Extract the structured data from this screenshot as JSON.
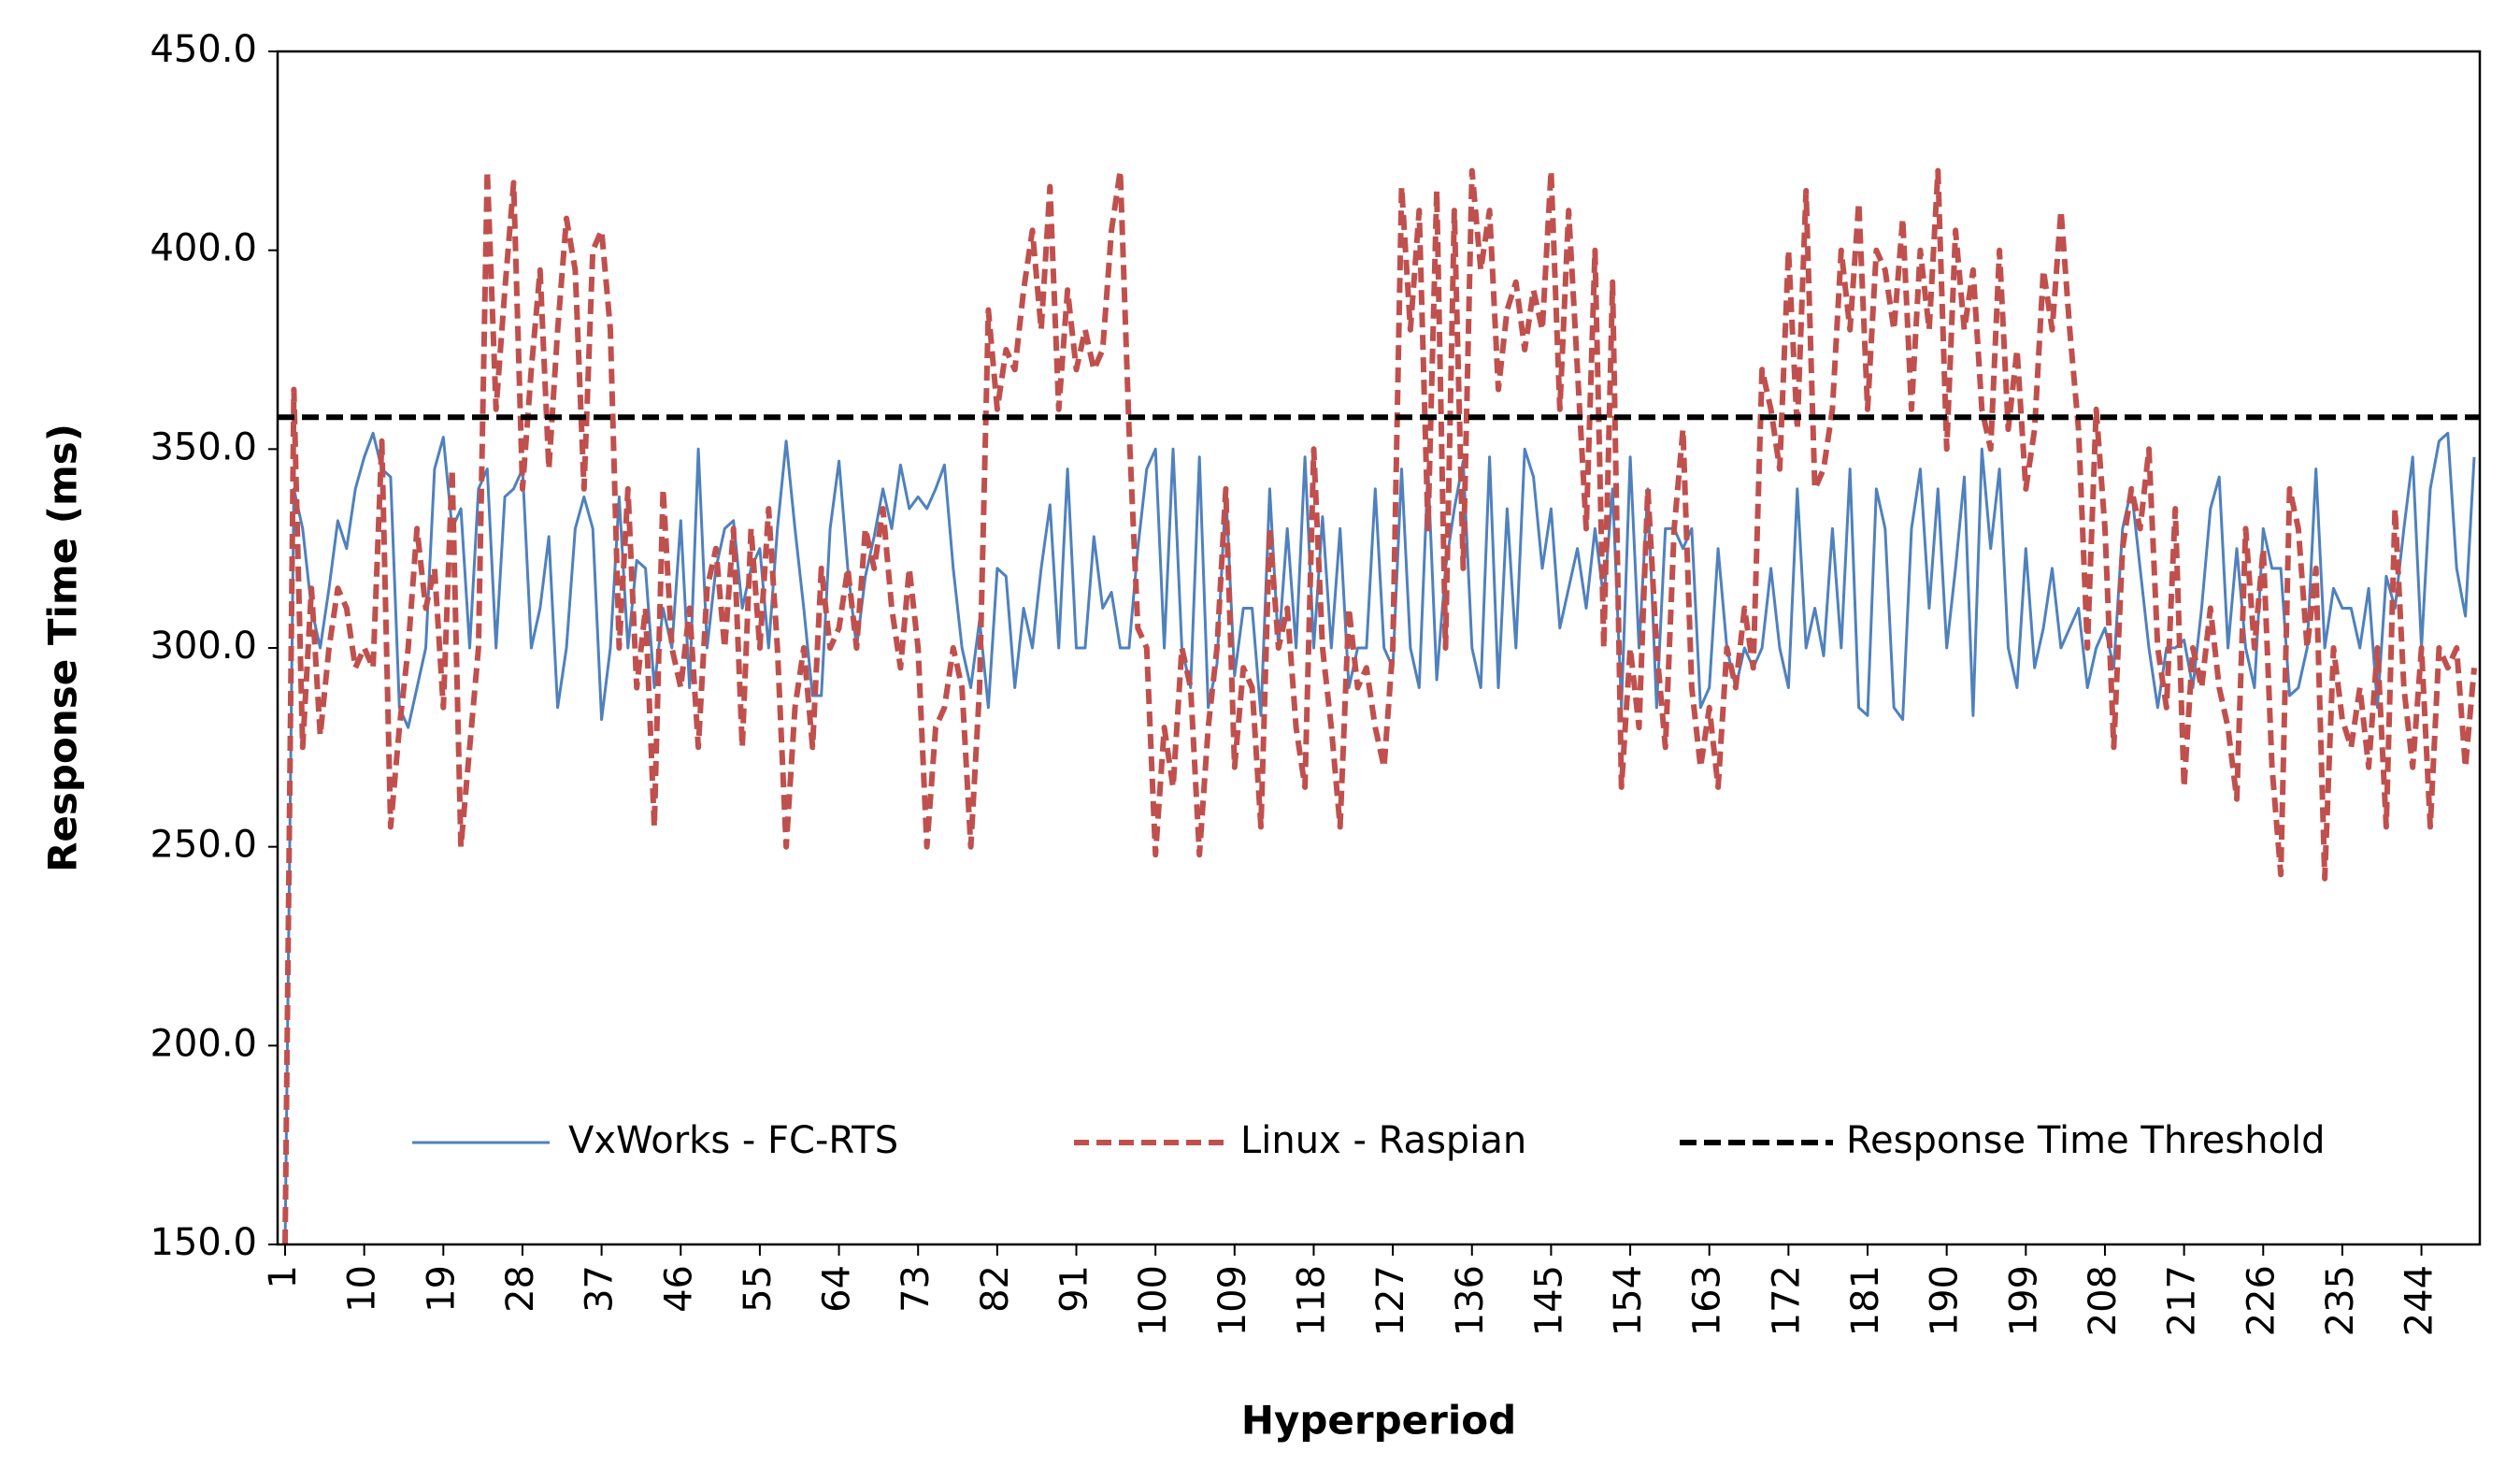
{
  "chart_data": {
    "type": "line",
    "xlabel": "Hyperperiod",
    "ylabel": "Response Time (ms)",
    "x": [
      1,
      2,
      3,
      4,
      5,
      6,
      7,
      8,
      9,
      10,
      11,
      12,
      13,
      14,
      15,
      16,
      17,
      18,
      19,
      20,
      21,
      22,
      23,
      24,
      25,
      26,
      27,
      28,
      29,
      30,
      31,
      32,
      33,
      34,
      35,
      36,
      37,
      38,
      39,
      40,
      41,
      42,
      43,
      44,
      45,
      46,
      47,
      48,
      49,
      50,
      51,
      52,
      53,
      54,
      55,
      56,
      57,
      58,
      59,
      60,
      61,
      62,
      63,
      64,
      65,
      66,
      67,
      68,
      69,
      70,
      71,
      72,
      73,
      74,
      75,
      76,
      77,
      78,
      79,
      80,
      81,
      82,
      83,
      84,
      85,
      86,
      87,
      88,
      89,
      90,
      91,
      92,
      93,
      94,
      95,
      96,
      97,
      98,
      99,
      100,
      101,
      102,
      103,
      104,
      105,
      106,
      107,
      108,
      109,
      110,
      111,
      112,
      113,
      114,
      115,
      116,
      117,
      118,
      119,
      120,
      121,
      122,
      123,
      124,
      125,
      126,
      127,
      128,
      129,
      130,
      131,
      132,
      133,
      134,
      135,
      136,
      137,
      138,
      139,
      140,
      141,
      142,
      143,
      144,
      145,
      146,
      147,
      148,
      149,
      150,
      151,
      152,
      153,
      154,
      155,
      156,
      157,
      158,
      159,
      160,
      161,
      162,
      163,
      164,
      165,
      166,
      167,
      168,
      169,
      170,
      171,
      172,
      173,
      174,
      175,
      176,
      177,
      178,
      179,
      180,
      181,
      182,
      183,
      184,
      185,
      186,
      187,
      188,
      189,
      190,
      191,
      192,
      193,
      194,
      195,
      196,
      197,
      198,
      199,
      200,
      201,
      202,
      203,
      204,
      205,
      206,
      207,
      208,
      209,
      210,
      211,
      212,
      213,
      214,
      215,
      216,
      217,
      218,
      219,
      220,
      221,
      222,
      223,
      224,
      225,
      226,
      227,
      228,
      229,
      230,
      231,
      232,
      233,
      234,
      235,
      236,
      237,
      238,
      239,
      240,
      241,
      242,
      243,
      244,
      245,
      246,
      247,
      248,
      249,
      250
    ],
    "xlim": [
      1,
      250
    ],
    "xticks": [
      1,
      10,
      19,
      28,
      37,
      46,
      55,
      64,
      73,
      82,
      91,
      100,
      109,
      118,
      127,
      136,
      145,
      154,
      163,
      172,
      181,
      190,
      199,
      208,
      217,
      226,
      235,
      244
    ],
    "ylim": [
      150,
      450
    ],
    "yticks": [
      {
        "value": 150,
        "label": "150.0"
      },
      {
        "value": 200,
        "label": "200.0"
      },
      {
        "value": 250,
        "label": "250.0"
      },
      {
        "value": 300,
        "label": "300.0"
      },
      {
        "value": 350,
        "label": "350.0"
      },
      {
        "value": 400,
        "label": "400.0"
      },
      {
        "value": 450,
        "label": "450.0"
      }
    ],
    "series": [
      {
        "name": "VxWorks - FC-RTS",
        "color": "#4f81bd",
        "dash": false,
        "values": [
          150,
          340,
          330,
          310,
          300,
          315,
          332,
          325,
          340,
          348,
          354,
          345,
          343,
          285,
          280,
          290,
          300,
          345,
          353,
          330,
          335,
          300,
          340,
          345,
          300,
          338,
          340,
          345,
          300,
          310,
          328,
          285,
          300,
          330,
          338,
          330,
          282,
          300,
          338,
          300,
          322,
          320,
          290,
          310,
          300,
          332,
          290,
          350,
          300,
          320,
          330,
          332,
          310,
          320,
          325,
          300,
          330,
          352,
          330,
          310,
          288,
          288,
          330,
          347,
          320,
          300,
          318,
          328,
          340,
          330,
          346,
          335,
          338,
          335,
          340,
          346,
          320,
          300,
          290,
          307,
          285,
          320,
          318,
          290,
          310,
          300,
          320,
          336,
          300,
          345,
          300,
          300,
          328,
          310,
          314,
          300,
          300,
          325,
          345,
          350,
          300,
          350,
          300,
          290,
          348,
          285,
          296,
          340,
          293,
          310,
          310,
          283,
          340,
          300,
          330,
          300,
          348,
          300,
          333,
          300,
          330,
          290,
          300,
          300,
          340,
          300,
          295,
          345,
          300,
          290,
          345,
          292,
          320,
          335,
          347,
          300,
          290,
          348,
          290,
          335,
          300,
          350,
          343,
          320,
          335,
          305,
          315,
          325,
          310,
          330,
          312,
          340,
          285,
          348,
          300,
          340,
          285,
          330,
          330,
          325,
          330,
          285,
          290,
          325,
          300,
          290,
          300,
          295,
          300,
          320,
          300,
          290,
          340,
          300,
          310,
          298,
          330,
          300,
          345,
          285,
          283,
          340,
          330,
          285,
          282,
          330,
          345,
          310,
          340,
          300,
          320,
          343,
          283,
          350,
          325,
          345,
          300,
          290,
          325,
          295,
          305,
          320,
          300,
          305,
          310,
          290,
          300,
          305,
          295,
          330,
          340,
          320,
          300,
          285,
          300,
          300,
          302,
          290,
          310,
          335,
          343,
          300,
          325,
          300,
          290,
          330,
          320,
          320,
          288,
          290,
          300,
          345,
          300,
          315,
          310,
          310,
          300,
          315,
          285,
          318,
          310,
          330,
          348,
          300,
          340,
          352,
          354,
          320,
          308,
          348
        ]
      },
      {
        "name": "Linux - Raspian",
        "color": "#c0504d",
        "dash": true,
        "values": [
          150,
          365,
          275,
          315,
          278,
          300,
          315,
          310,
          295,
          300,
          295,
          352,
          255,
          280,
          300,
          330,
          310,
          320,
          285,
          345,
          250,
          275,
          300,
          420,
          360,
          390,
          417,
          340,
          370,
          395,
          345,
          380,
          408,
          395,
          340,
          400,
          405,
          380,
          300,
          340,
          290,
          310,
          255,
          340,
          300,
          290,
          310,
          275,
          315,
          325,
          300,
          330,
          275,
          330,
          300,
          335,
          300,
          250,
          285,
          300,
          275,
          320,
          300,
          305,
          320,
          300,
          330,
          320,
          335,
          310,
          295,
          320,
          300,
          250,
          280,
          285,
          300,
          290,
          250,
          290,
          385,
          360,
          375,
          370,
          390,
          405,
          380,
          416,
          360,
          390,
          370,
          380,
          370,
          375,
          405,
          420,
          355,
          305,
          300,
          248,
          280,
          265,
          300,
          290,
          248,
          280,
          300,
          340,
          270,
          295,
          290,
          255,
          330,
          300,
          310,
          280,
          265,
          350,
          300,
          280,
          255,
          310,
          290,
          295,
          280,
          270,
          300,
          416,
          380,
          410,
          330,
          415,
          300,
          410,
          320,
          420,
          395,
          410,
          365,
          385,
          392,
          375,
          390,
          380,
          420,
          360,
          410,
          370,
          330,
          400,
          300,
          392,
          265,
          300,
          280,
          340,
          300,
          275,
          330,
          355,
          290,
          270,
          285,
          265,
          300,
          290,
          310,
          295,
          370,
          360,
          345,
          400,
          355,
          415,
          340,
          345,
          360,
          400,
          380,
          412,
          360,
          400,
          395,
          380,
          408,
          360,
          400,
          380,
          420,
          350,
          405,
          380,
          395,
          360,
          350,
          400,
          355,
          375,
          340,
          355,
          395,
          380,
          410,
          380,
          355,
          300,
          360,
          330,
          275,
          325,
          340,
          330,
          350,
          300,
          285,
          335,
          265,
          300,
          290,
          310,
          290,
          280,
          262,
          330,
          300,
          325,
          270,
          243,
          340,
          330,
          300,
          320,
          242,
          300,
          282,
          275,
          290,
          270,
          300,
          255,
          335,
          290,
          270,
          300,
          255,
          300,
          295,
          300,
          270,
          295
        ]
      }
    ],
    "threshold": {
      "name": "Response Time Threshold",
      "value": 358,
      "color": "#000000"
    }
  }
}
